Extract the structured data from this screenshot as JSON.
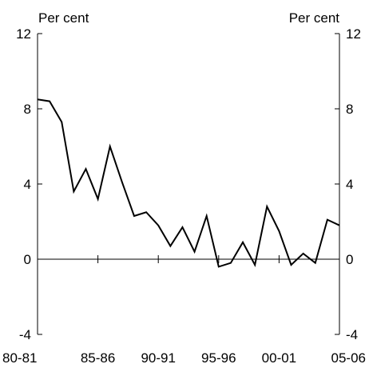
{
  "chart_data": {
    "type": "line",
    "left_unit_label": "Per cent",
    "right_unit_label": "Per cent",
    "ylim": [
      -4,
      12
    ],
    "yticks": [
      -4,
      0,
      4,
      8,
      12
    ],
    "ytick_labels": [
      "-4",
      "0",
      "4",
      "8",
      "12"
    ],
    "xtick_labels": [
      "80-81",
      "85-86",
      "90-91",
      "95-96",
      "00-01",
      "05-06"
    ],
    "x": [
      "80-81",
      "81-82",
      "82-83",
      "83-84",
      "84-85",
      "85-86",
      "86-87",
      "87-88",
      "88-89",
      "89-90",
      "90-91",
      "91-92",
      "92-93",
      "93-94",
      "94-95",
      "95-96",
      "96-97",
      "97-98",
      "98-99",
      "99-00",
      "00-01",
      "01-02",
      "02-03",
      "03-04",
      "04-05",
      "05-06"
    ],
    "series": [
      {
        "values": [
          8.5,
          8.4,
          7.3,
          3.6,
          4.8,
          3.2,
          6.0,
          4.1,
          2.3,
          2.5,
          1.8,
          0.7,
          1.7,
          0.4,
          2.3,
          -0.4,
          -0.2,
          0.9,
          -0.3,
          2.8,
          1.5,
          -0.3,
          0.3,
          -0.2,
          2.1,
          1.8
        ],
        "color": "#000000"
      }
    ],
    "grid": false
  }
}
